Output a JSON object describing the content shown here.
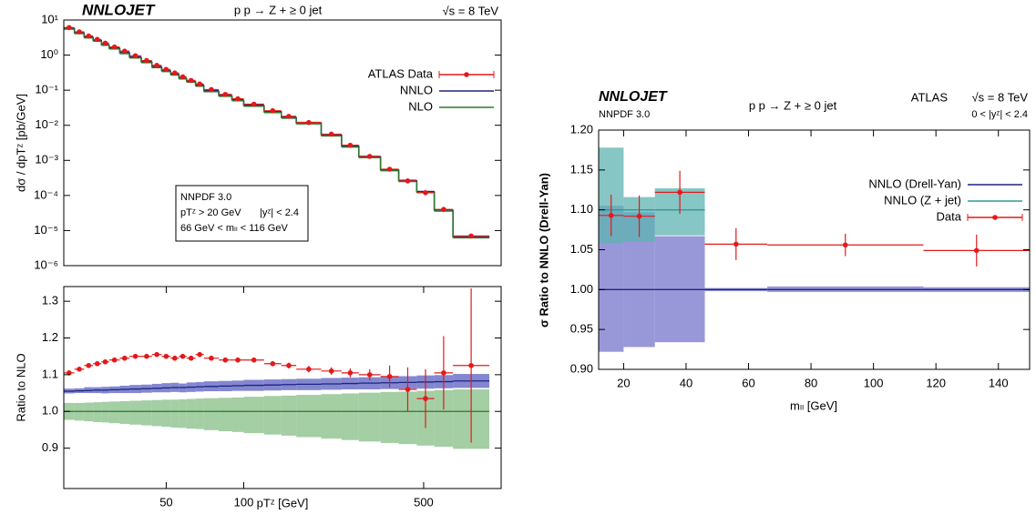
{
  "chart_data": [
    {
      "type": "histogram",
      "title": "NNLOJET",
      "subtitle": "p p → Z + ≥ 0 jet",
      "energy": "√s = 8 TeV",
      "ylabel": "dσ / dpTᶻ [pb/GeV]",
      "box": [
        "NNPDF 3.0",
        "pTᶻ > 20 GeV",
        "|yᶻ| < 2.4",
        "66 GeV < mₗₗ < 116 GeV"
      ],
      "xlog": true,
      "ylog": true,
      "xlim": [
        20,
        1000
      ],
      "ylim": [
        1e-06,
        10
      ],
      "yticks": [
        {
          "value": 10,
          "label": "10¹"
        },
        {
          "value": 1,
          "label": "10⁰"
        },
        {
          "value": 0.1,
          "label": "10⁻¹"
        },
        {
          "value": 0.01,
          "label": "10⁻²"
        },
        {
          "value": 0.001,
          "label": "10⁻³"
        },
        {
          "value": 0.0001,
          "label": "10⁻⁴"
        },
        {
          "value": 1e-05,
          "label": "10⁻⁵"
        },
        {
          "value": 1e-06,
          "label": "10⁻⁶"
        }
      ],
      "legend": "upper right",
      "bins": [
        20,
        22,
        24,
        26,
        28,
        30,
        33,
        36,
        40,
        44,
        48,
        52,
        56,
        60,
        65,
        70,
        80,
        90,
        100,
        120,
        140,
        160,
        200,
        240,
        280,
        340,
        400,
        470,
        550,
        650,
        900
      ],
      "series": [
        {
          "name": "ATLAS Data",
          "color": "#e3191c",
          "style": "points",
          "values": [
            6.1,
            4.6,
            3.5,
            2.8,
            2.2,
            1.7,
            1.3,
            0.96,
            0.7,
            0.51,
            0.39,
            0.31,
            0.24,
            0.19,
            0.15,
            0.104,
            0.076,
            0.057,
            0.04,
            0.026,
            0.018,
            0.012,
            0.0056,
            0.0027,
            0.0013,
            0.00056,
            0.00026,
            0.00012,
            4e-05,
            7e-06
          ]
        },
        {
          "name": "NNLO",
          "color": "#1c2580",
          "style": "step",
          "values": [
            5.9,
            4.4,
            3.3,
            2.7,
            2.0,
            1.6,
            1.2,
            0.88,
            0.65,
            0.47,
            0.36,
            0.29,
            0.22,
            0.18,
            0.14,
            0.097,
            0.071,
            0.053,
            0.037,
            0.025,
            0.017,
            0.012,
            0.0054,
            0.0026,
            0.0013,
            0.00055,
            0.00027,
            0.00013,
            3.9e-05,
            6.7e-06
          ]
        },
        {
          "name": "NLO",
          "color": "#2a7a2a",
          "style": "step",
          "values": [
            5.5,
            4.1,
            3.1,
            2.5,
            1.9,
            1.5,
            1.1,
            0.83,
            0.61,
            0.44,
            0.34,
            0.27,
            0.21,
            0.17,
            0.13,
            0.091,
            0.067,
            0.05,
            0.035,
            0.023,
            0.016,
            0.011,
            0.005,
            0.0024,
            0.0012,
            0.00051,
            0.00025,
            0.00012,
            3.6e-05,
            6.2e-06
          ]
        }
      ]
    },
    {
      "type": "histogram",
      "ylabel": "Ratio to NLO",
      "xlabel": "pTᶻ [GeV]",
      "xlog": true,
      "xlim": [
        20,
        1000
      ],
      "ylim": [
        0.79,
        1.34
      ],
      "xticks": [
        50,
        100,
        500
      ],
      "yticks": [
        0.9,
        {
          "value": 1,
          "label": "1.0"
        },
        1.1,
        1.2,
        1.3
      ],
      "bins": [
        20,
        22,
        24,
        26,
        28,
        30,
        33,
        36,
        40,
        44,
        48,
        52,
        56,
        60,
        65,
        70,
        80,
        90,
        100,
        120,
        140,
        160,
        200,
        240,
        280,
        340,
        400,
        470,
        550,
        650,
        900
      ],
      "series": [
        {
          "color": "#2a7a2a",
          "band_color": "#86bd86",
          "style": "band",
          "values": [
            1,
            1,
            1,
            1,
            1,
            1,
            1,
            1,
            1,
            1,
            1,
            1,
            1,
            1,
            1,
            1,
            1,
            1,
            1,
            1,
            1,
            1,
            1,
            1,
            1,
            1,
            1,
            1,
            1,
            1
          ],
          "low": [
            0.977,
            0.975,
            0.973,
            0.971,
            0.97,
            0.968,
            0.966,
            0.964,
            0.962,
            0.96,
            0.958,
            0.956,
            0.955,
            0.953,
            0.952,
            0.949,
            0.946,
            0.944,
            0.941,
            0.937,
            0.934,
            0.93,
            0.926,
            0.922,
            0.918,
            0.914,
            0.911,
            0.907,
            0.904,
            0.898
          ],
          "high": [
            1.023,
            1.023,
            1.024,
            1.025,
            1.026,
            1.027,
            1.028,
            1.029,
            1.03,
            1.031,
            1.032,
            1.032,
            1.033,
            1.034,
            1.035,
            1.036,
            1.037,
            1.038,
            1.04,
            1.042,
            1.043,
            1.045,
            1.047,
            1.049,
            1.051,
            1.053,
            1.054,
            1.056,
            1.058,
            1.06
          ]
        },
        {
          "color": "#1c2580",
          "band_color": "#5a5fc0",
          "style": "band",
          "values": [
            1.055,
            1.056,
            1.057,
            1.058,
            1.058,
            1.059,
            1.06,
            1.061,
            1.062,
            1.063,
            1.064,
            1.065,
            1.065,
            1.066,
            1.067,
            1.068,
            1.069,
            1.07,
            1.071,
            1.072,
            1.073,
            1.074,
            1.075,
            1.076,
            1.077,
            1.078,
            1.079,
            1.08,
            1.081,
            1.083
          ],
          "low": [
            1.049,
            1.05,
            1.05,
            1.05,
            1.049,
            1.05,
            1.05,
            1.05,
            1.051,
            1.052,
            1.052,
            1.053,
            1.052,
            1.053,
            1.054,
            1.055,
            1.055,
            1.056,
            1.056,
            1.057,
            1.058,
            1.058,
            1.059,
            1.06,
            1.06,
            1.061,
            1.062,
            1.062,
            1.063,
            1.064
          ],
          "high": [
            1.062,
            1.063,
            1.066,
            1.066,
            1.067,
            1.068,
            1.07,
            1.072,
            1.073,
            1.075,
            1.077,
            1.078,
            1.076,
            1.079,
            1.08,
            1.082,
            1.083,
            1.084,
            1.086,
            1.087,
            1.088,
            1.089,
            1.091,
            1.092,
            1.093,
            1.095,
            1.096,
            1.098,
            1.099,
            1.102
          ]
        },
        {
          "color": "#e3191c",
          "style": "points",
          "values": [
            1.105,
            1.115,
            1.125,
            1.13,
            1.135,
            1.14,
            1.145,
            1.15,
            1.15,
            1.155,
            1.15,
            1.145,
            1.15,
            1.145,
            1.155,
            1.145,
            1.14,
            1.14,
            1.14,
            1.13,
            1.125,
            1.115,
            1.11,
            1.105,
            1.1,
            1.095,
            1.06,
            1.035,
            1.105,
            1.125
          ],
          "errors": [
            0.005,
            0.005,
            0.005,
            0.005,
            0.005,
            0.005,
            0.005,
            0.005,
            0.005,
            0.005,
            0.005,
            0.005,
            0.005,
            0.005,
            0.005,
            0.005,
            0.005,
            0.005,
            0.006,
            0.007,
            0.008,
            0.009,
            0.01,
            0.012,
            0.015,
            0.03,
            0.06,
            0.08,
            0.1,
            0.21
          ]
        }
      ]
    },
    {
      "type": "histogram",
      "title": "NNLOJET",
      "pdf": "NNPDF 3.0",
      "subtitle": "p p → Z + ≥ 0 jet",
      "experiment": "ATLAS",
      "energy": "√s = 8 TeV",
      "cuts": "0 < |yᶻ| < 2.4",
      "ylabel": "σ    Ratio to NNLO (Drell-Yan)",
      "xlabel": "mₗₗ [GeV]",
      "xlim": [
        12,
        150
      ],
      "ylim": [
        0.9,
        1.2
      ],
      "xticks": [
        20,
        40,
        60,
        80,
        100,
        120,
        140
      ],
      "yticks": [
        {
          "value": 0.9,
          "label": "0.90"
        },
        {
          "value": 0.95,
          "label": "0.95"
        },
        {
          "value": 1,
          "label": "1.00"
        },
        {
          "value": 1.05,
          "label": "1.05"
        },
        {
          "value": 1.1,
          "label": "1.10"
        },
        {
          "value": 1.15,
          "label": "1.15"
        },
        {
          "value": 1.2,
          "label": "1.20"
        }
      ],
      "legend": "upper right",
      "bins": [
        12,
        20,
        30,
        46,
        66,
        116,
        150
      ],
      "series": [
        {
          "name": "NNLO (Drell-Yan)",
          "color": "#1c2580",
          "band_color": "#7676cc",
          "style": "band",
          "values": [
            1,
            1,
            1,
            1,
            1,
            1
          ],
          "low": [
            0.922,
            0.928,
            0.934,
            0.998,
            0.997,
            0.997
          ],
          "high": [
            1.105,
            1.097,
            1.067,
            1.002,
            1.004,
            1.003
          ]
        },
        {
          "name": "NNLO (Z + jet)",
          "color": "#2e9a9a",
          "band_color": "#5db3b0",
          "style": "band",
          "values": [
            1.1,
            1.1,
            1.1,
            null,
            null,
            null
          ],
          "low": [
            1.058,
            1.06,
            1.068,
            null,
            null,
            null
          ],
          "high": [
            1.178,
            1.116,
            1.127,
            null,
            null,
            null
          ]
        },
        {
          "name": "Data",
          "color": "#e3191c",
          "style": "points",
          "values": [
            1.093,
            1.092,
            1.122,
            1.057,
            1.056,
            1.049
          ],
          "errors": [
            0.026,
            0.026,
            0.027,
            0.02,
            0.014,
            0.02
          ]
        }
      ]
    }
  ]
}
